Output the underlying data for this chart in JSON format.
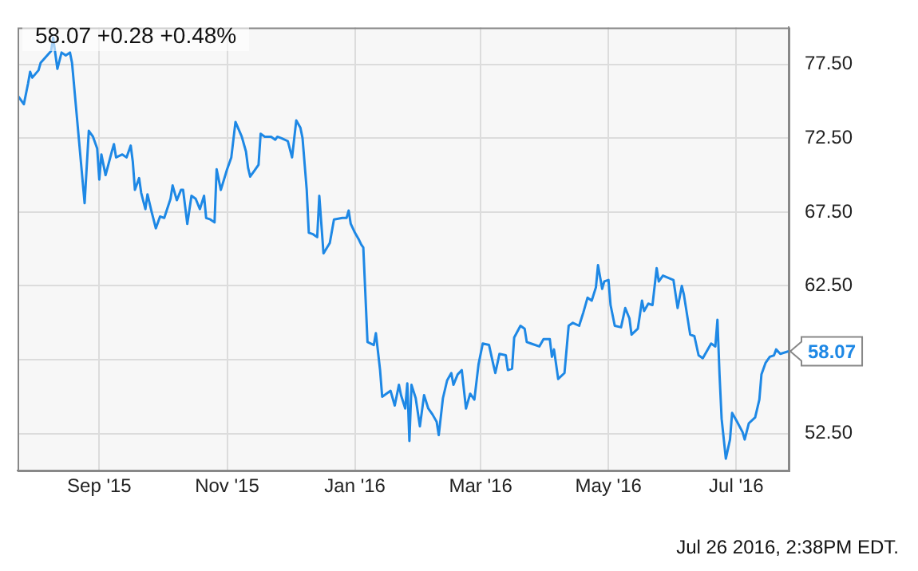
{
  "chart_data": {
    "type": "line",
    "title": "58.07 +0.28 +0.48%",
    "annotations": [
      {
        "text": "58.07",
        "x": "2016-07-26",
        "y": 58.07
      },
      "Jul 26 2016, 2:38PM EDT."
    ],
    "x": [
      "2015-07-24",
      "2015-07-27",
      "2015-07-29",
      "2015-07-30",
      "2015-07-31",
      "2015-08-03",
      "2015-08-04",
      "2015-08-09",
      "2015-08-10",
      "2015-08-12",
      "2015-08-14",
      "2015-08-16",
      "2015-08-18",
      "2015-08-19",
      "2015-08-25",
      "2015-08-27",
      "2015-08-29",
      "2015-08-31",
      "2015-09-01",
      "2015-09-02",
      "2015-09-04",
      "2015-09-07",
      "2015-09-08",
      "2015-09-09",
      "2015-09-12",
      "2015-09-14",
      "2015-09-16",
      "2015-09-17",
      "2015-09-18",
      "2015-09-20",
      "2015-09-21",
      "2015-09-23",
      "2015-09-24",
      "2015-09-26",
      "2015-09-28",
      "2015-09-30",
      "2015-10-02",
      "2015-10-05",
      "2015-10-06",
      "2015-10-08",
      "2015-10-10",
      "2015-10-11",
      "2015-10-13",
      "2015-10-15",
      "2015-10-17",
      "2015-10-19",
      "2015-10-21",
      "2015-10-22",
      "2015-10-24",
      "2015-10-26",
      "2015-10-27",
      "2015-10-29",
      "2015-11-01",
      "2015-11-03",
      "2015-11-05",
      "2015-11-08",
      "2015-11-10",
      "2015-11-11",
      "2015-11-12",
      "2015-11-14",
      "2015-11-16",
      "2015-11-17",
      "2015-11-19",
      "2015-11-22",
      "2015-11-24",
      "2015-11-25",
      "2015-11-27",
      "2015-11-30",
      "2015-12-02",
      "2015-12-04",
      "2015-12-06",
      "2015-12-07",
      "2015-12-09",
      "2015-12-10",
      "2015-12-12",
      "2015-12-14",
      "2015-12-15",
      "2015-12-17",
      "2015-12-20",
      "2015-12-22",
      "2015-12-26",
      "2015-12-28",
      "2015-12-29",
      "2015-12-30",
      "2016-01-01",
      "2016-01-03",
      "2016-01-04",
      "2016-01-05",
      "2016-01-07",
      "2016-01-10",
      "2016-01-11",
      "2016-01-13",
      "2016-01-14",
      "2016-01-16",
      "2016-01-18",
      "2016-01-20",
      "2016-01-22",
      "2016-01-23",
      "2016-01-25",
      "2016-01-26",
      "2016-01-27",
      "2016-01-28",
      "2016-01-30",
      "2016-02-01",
      "2016-02-03",
      "2016-02-05",
      "2016-02-07",
      "2016-02-09",
      "2016-02-10",
      "2016-02-12",
      "2016-02-14",
      "2016-02-16",
      "2016-02-17",
      "2016-02-19",
      "2016-02-21",
      "2016-02-23",
      "2016-02-25",
      "2016-02-27",
      "2016-02-29",
      "2016-03-02",
      "2016-03-05",
      "2016-03-07",
      "2016-03-08",
      "2016-03-10",
      "2016-03-13",
      "2016-03-14",
      "2016-03-16",
      "2016-03-17",
      "2016-03-20",
      "2016-03-22",
      "2016-03-23",
      "2016-03-25",
      "2016-03-29",
      "2016-03-31",
      "2016-04-03",
      "2016-04-04",
      "2016-04-05",
      "2016-04-07",
      "2016-04-10",
      "2016-04-12",
      "2016-04-14",
      "2016-04-17",
      "2016-04-19",
      "2016-04-20",
      "2016-04-21",
      "2016-04-23",
      "2016-04-25",
      "2016-04-26",
      "2016-04-28",
      "2016-04-29",
      "2016-05-01",
      "2016-05-02",
      "2016-05-04",
      "2016-05-07",
      "2016-05-09",
      "2016-05-11",
      "2016-05-12",
      "2016-05-15",
      "2016-05-17",
      "2016-05-18",
      "2016-05-20",
      "2016-05-22",
      "2016-05-24",
      "2016-05-25",
      "2016-05-27",
      "2016-06-01",
      "2016-06-03",
      "2016-06-05",
      "2016-06-06",
      "2016-06-09",
      "2016-06-11",
      "2016-06-13",
      "2016-06-15",
      "2016-06-19",
      "2016-06-21",
      "2016-06-22",
      "2016-06-23",
      "2016-06-24",
      "2016-06-26",
      "2016-06-28",
      "2016-06-29",
      "2016-07-01",
      "2016-07-04",
      "2016-07-05",
      "2016-07-07",
      "2016-07-10",
      "2016-07-12",
      "2016-07-13",
      "2016-07-15",
      "2016-07-17",
      "2016-07-19",
      "2016-07-20",
      "2016-07-22",
      "2016-07-26"
    ],
    "series": [
      {
        "color": "#1e88e5",
        "values": [
          75.4,
          74.8,
          76.2,
          77.0,
          76.6,
          77.1,
          77.6,
          78.4,
          79.3,
          77.2,
          78.3,
          78.1,
          78.3,
          77.6,
          68.1,
          73.0,
          72.6,
          71.8,
          69.7,
          71.4,
          70.0,
          71.6,
          72.1,
          71.2,
          71.4,
          71.2,
          72.0,
          70.9,
          69.0,
          69.8,
          68.8,
          67.7,
          68.7,
          67.5,
          66.4,
          67.2,
          67.1,
          68.4,
          69.3,
          68.3,
          69.0,
          69.0,
          66.7,
          68.6,
          68.4,
          67.7,
          68.6,
          67.1,
          67.0,
          66.8,
          70.4,
          69.0,
          70.4,
          71.2,
          73.6,
          72.6,
          71.6,
          70.5,
          69.9,
          70.3,
          70.7,
          72.8,
          72.6,
          72.6,
          72.4,
          72.6,
          72.5,
          72.3,
          71.2,
          73.7,
          73.2,
          72.5,
          69.0,
          66.1,
          66.0,
          65.8,
          68.6,
          64.7,
          65.4,
          67.0,
          67.1,
          67.1,
          67.6,
          66.7,
          66.1,
          65.6,
          65.3,
          65.1,
          58.7,
          58.5,
          59.3,
          56.8,
          55.0,
          55.2,
          55.4,
          54.4,
          55.8,
          55.1,
          54.2,
          55.9,
          52.0,
          55.8,
          54.9,
          53.0,
          55.1,
          54.2,
          53.8,
          53.3,
          52.4,
          54.9,
          56.1,
          56.6,
          55.8,
          56.5,
          56.8,
          54.2,
          55.2,
          54.8,
          57.2,
          58.6,
          58.5,
          57.2,
          56.6,
          57.9,
          57.8,
          56.8,
          56.9,
          59.0,
          59.8,
          59.6,
          58.7,
          58.6,
          58.4,
          58.9,
          58.9,
          57.7,
          58.2,
          56.2,
          56.6,
          59.8,
          60.0,
          59.8,
          60.7,
          61.2,
          61.7,
          61.5,
          62.4,
          63.9,
          62.3,
          62.8,
          62.9,
          61.2,
          59.8,
          59.7,
          61.0,
          60.3,
          59.2,
          59.6,
          61.5,
          60.8,
          61.3,
          61.2,
          63.7,
          62.8,
          63.2,
          62.9,
          61.0,
          62.5,
          61.9,
          59.2,
          59.1,
          57.8,
          57.6,
          58.6,
          58.4,
          60.2,
          56.5,
          53.5,
          50.8,
          52.1,
          53.9,
          53.4,
          52.6,
          52.1,
          53.2,
          53.6,
          54.8,
          56.5,
          57.3,
          57.7,
          57.8,
          58.2,
          57.9,
          58.07
        ]
      }
    ],
    "xlim": [
      "2015-07-24",
      "2016-07-26"
    ],
    "xticks": [
      {
        "value": "2015-09-01",
        "label": "Sep '15"
      },
      {
        "value": "2015-11-01",
        "label": "Nov '15"
      },
      {
        "value": "2016-01-01",
        "label": "Jan '16"
      },
      {
        "value": "2016-03-01",
        "label": "Mar '16"
      },
      {
        "value": "2016-05-01",
        "label": "May '16"
      },
      {
        "value": "2016-07-01",
        "label": "Jul '16"
      }
    ],
    "ylim": [
      50,
      80
    ],
    "yticks": [
      {
        "value": 52.5,
        "label": "52.50"
      },
      {
        "value": 57.5,
        "label": null
      },
      {
        "value": 62.5,
        "label": "62.50"
      },
      {
        "value": 67.5,
        "label": "67.50"
      },
      {
        "value": 72.5,
        "label": "72.50"
      },
      {
        "value": 77.5,
        "label": "77.50"
      }
    ],
    "grid": true,
    "marker": "none",
    "line_style": "solid"
  }
}
